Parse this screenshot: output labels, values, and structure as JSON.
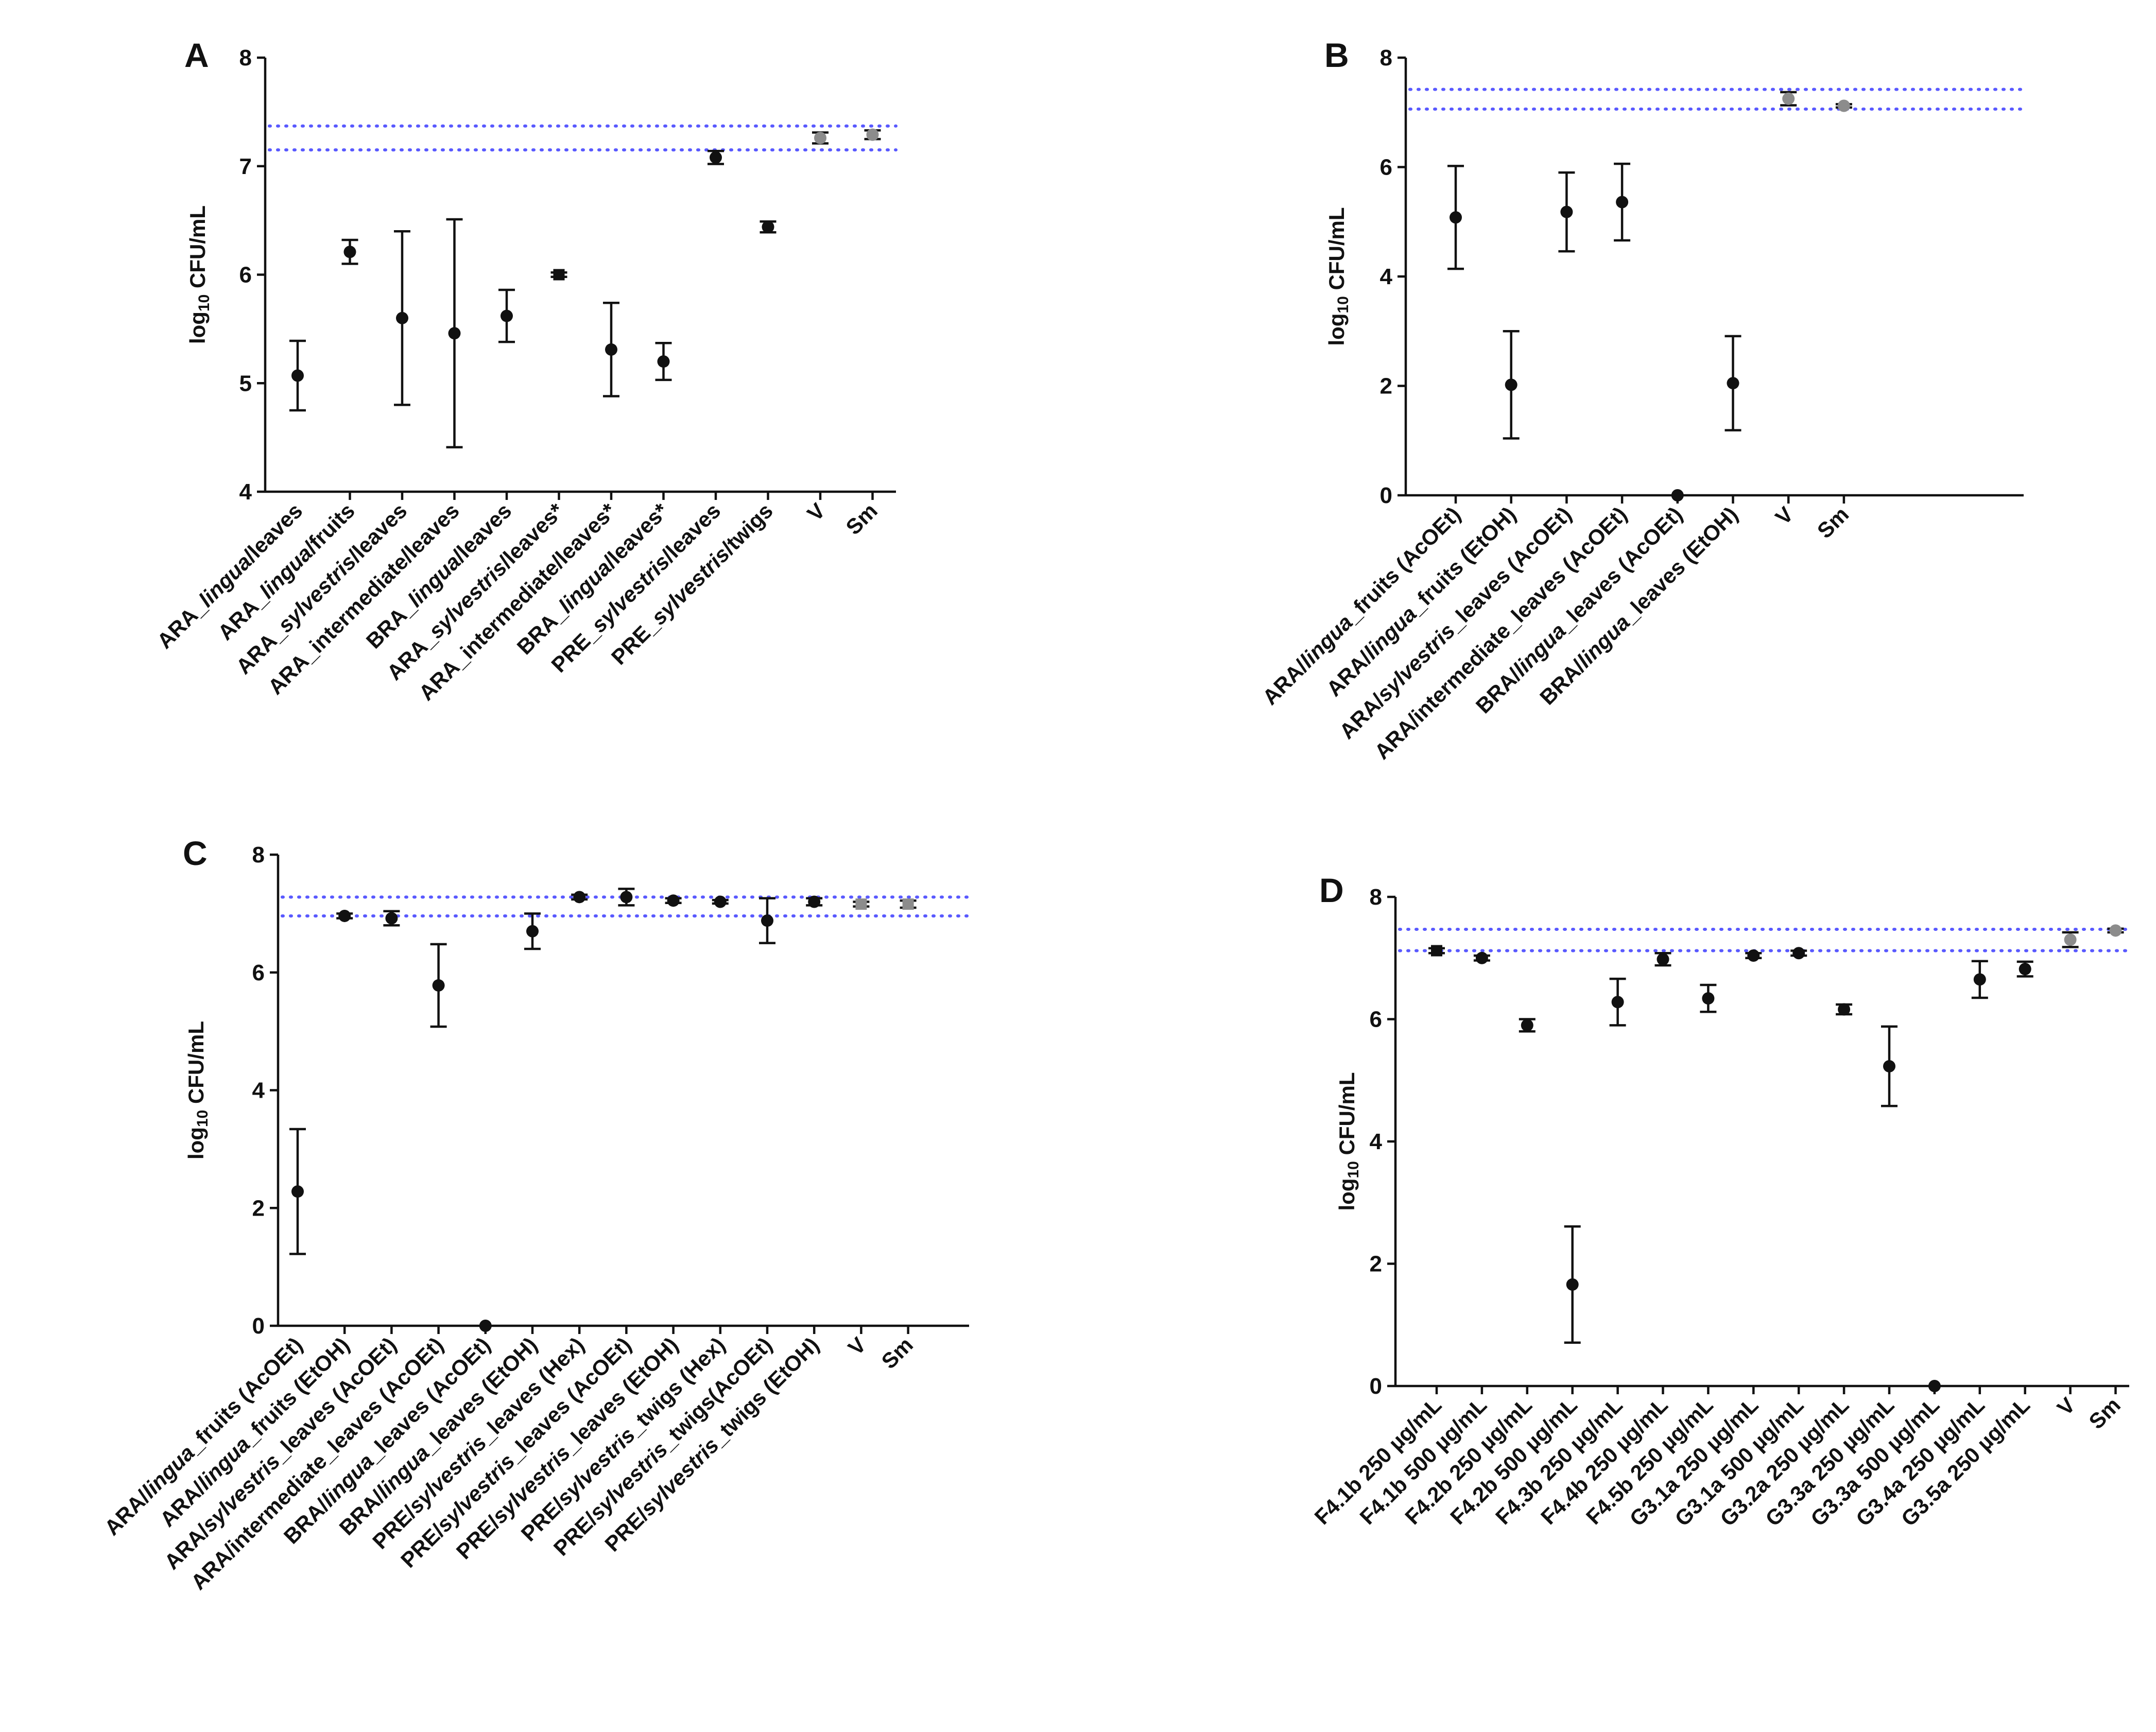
{
  "colors": {
    "point": "#111111",
    "control_point": "#8c8c8c",
    "reference_line": "#5959ff"
  },
  "chart_data": [
    {
      "type": "scatter",
      "panel": "A",
      "ylabel": "log10 CFU/mL",
      "ylim": [
        4,
        8
      ],
      "yticks": [
        4,
        5,
        6,
        7,
        8
      ],
      "reference_lines": [
        7.37,
        7.15
      ],
      "categories": [
        {
          "segs": [
            [
              "ARA_",
              false
            ],
            [
              "lingua",
              true
            ],
            [
              "/leaves",
              false
            ]
          ]
        },
        {
          "segs": [
            [
              "ARA_",
              false
            ],
            [
              "lingua",
              true
            ],
            [
              "/fruits",
              false
            ]
          ]
        },
        {
          "segs": [
            [
              "ARA_",
              false
            ],
            [
              "sylvestris",
              true
            ],
            [
              "/leaves",
              false
            ]
          ]
        },
        {
          "segs": [
            [
              "ARA_intermediate/leaves",
              false
            ]
          ]
        },
        {
          "segs": [
            [
              "BRA_",
              false
            ],
            [
              "lingua",
              true
            ],
            [
              "/leaves",
              false
            ]
          ]
        },
        {
          "segs": [
            [
              "ARA_",
              false
            ],
            [
              "sylvestris",
              true
            ],
            [
              "/leaves*",
              false
            ]
          ]
        },
        {
          "segs": [
            [
              "ARA_intermediate/leaves*",
              false
            ]
          ]
        },
        {
          "segs": [
            [
              "BRA_",
              false
            ],
            [
              "lingua",
              true
            ],
            [
              "/leaves*",
              false
            ]
          ]
        },
        {
          "segs": [
            [
              "PRE_",
              false
            ],
            [
              "sylvestris",
              true
            ],
            [
              "/leaves",
              false
            ]
          ]
        },
        {
          "segs": [
            [
              "PRE_",
              false
            ],
            [
              "sylvestris",
              true
            ],
            [
              "/twigs",
              false
            ]
          ]
        },
        {
          "segs": [
            [
              "V",
              false
            ]
          ]
        },
        {
          "segs": [
            [
              "Sm",
              false
            ]
          ]
        }
      ],
      "values": [
        5.07,
        6.21,
        5.6,
        5.46,
        5.62,
        6.0,
        5.31,
        5.2,
        7.08,
        6.44,
        7.26,
        7.29
      ],
      "errors": [
        0.32,
        0.11,
        0.8,
        1.05,
        0.24,
        0.02,
        0.43,
        0.17,
        0.06,
        0.05,
        0.05,
        0.04
      ],
      "control": [
        false,
        false,
        false,
        false,
        false,
        false,
        false,
        false,
        false,
        false,
        true,
        true
      ],
      "marker": [
        "circle",
        "circle",
        "circle",
        "circle",
        "circle",
        "square",
        "circle",
        "circle",
        "circle",
        "circle",
        "circle",
        "circle"
      ]
    },
    {
      "type": "scatter",
      "panel": "B",
      "ylabel": "log10 CFU/mL",
      "ylim": [
        0,
        8
      ],
      "yticks": [
        0,
        2,
        4,
        6,
        8
      ],
      "reference_lines": [
        7.42,
        7.06
      ],
      "categories": [
        {
          "segs": [
            [
              "ARA/",
              false
            ],
            [
              "lingua",
              true
            ],
            [
              "_fruits (AcOEt)",
              false
            ]
          ]
        },
        {
          "segs": [
            [
              "ARA/",
              false
            ],
            [
              "lingua",
              true
            ],
            [
              "_fruits (EtOH)",
              false
            ]
          ]
        },
        {
          "segs": [
            [
              "ARA/",
              false
            ],
            [
              "sylvestris",
              true
            ],
            [
              "_leaves (AcOEt)",
              false
            ]
          ]
        },
        {
          "segs": [
            [
              "ARA/intermediate_leaves (AcOEt)",
              false
            ]
          ]
        },
        {
          "segs": [
            [
              "BRA/",
              false
            ],
            [
              "lingua",
              true
            ],
            [
              "_leaves (AcOEt)",
              false
            ]
          ]
        },
        {
          "segs": [
            [
              "BRA/",
              false
            ],
            [
              "lingua",
              true
            ],
            [
              "_leaves (EtOH)",
              false
            ]
          ]
        },
        {
          "segs": [
            [
              "V",
              false
            ]
          ]
        },
        {
          "segs": [
            [
              "Sm",
              false
            ]
          ]
        }
      ],
      "values": [
        5.08,
        2.02,
        5.18,
        5.36,
        0.0,
        2.05,
        7.25,
        7.12
      ],
      "errors": [
        0.94,
        0.98,
        0.72,
        0.7,
        0.0,
        0.86,
        0.12,
        0.03
      ],
      "control": [
        false,
        false,
        false,
        false,
        false,
        false,
        true,
        true
      ],
      "marker": [
        "circle",
        "circle",
        "circle",
        "circle",
        "circle",
        "circle",
        "circle",
        "circle"
      ]
    },
    {
      "type": "scatter",
      "panel": "C",
      "ylabel": "log10 CFU/mL",
      "ylim": [
        0,
        8
      ],
      "yticks": [
        0,
        2,
        4,
        6,
        8
      ],
      "reference_lines": [
        7.28,
        6.96
      ],
      "categories": [
        {
          "segs": [
            [
              "ARA/",
              false
            ],
            [
              "lingua",
              true
            ],
            [
              "_fruits (AcOEt)",
              false
            ]
          ]
        },
        {
          "segs": [
            [
              "ARA/",
              false
            ],
            [
              "lingua",
              true
            ],
            [
              "_fruits (EtOH)",
              false
            ]
          ]
        },
        {
          "segs": [
            [
              "ARA/",
              false
            ],
            [
              "sylvestris",
              true
            ],
            [
              "_leaves (AcOEt)",
              false
            ]
          ]
        },
        {
          "segs": [
            [
              "ARA/intermediate_leaves (AcOEt)",
              false
            ]
          ]
        },
        {
          "segs": [
            [
              "BRA/",
              false
            ],
            [
              "lingua",
              true
            ],
            [
              "_leaves (AcOEt)",
              false
            ]
          ]
        },
        {
          "segs": [
            [
              "BRA/",
              false
            ],
            [
              "lingua",
              true
            ],
            [
              "_leaves (EtOH)",
              false
            ]
          ]
        },
        {
          "segs": [
            [
              "PRE/",
              false
            ],
            [
              "sylvestris",
              true
            ],
            [
              "_leaves (Hex)",
              false
            ]
          ]
        },
        {
          "segs": [
            [
              "PRE/",
              false
            ],
            [
              "sylvestris",
              true
            ],
            [
              "_leaves (AcOEt)",
              false
            ]
          ]
        },
        {
          "segs": [
            [
              "PRE/",
              false
            ],
            [
              "sylvestris",
              true
            ],
            [
              "_leaves (EtOH)",
              false
            ]
          ]
        },
        {
          "segs": [
            [
              "PRE/",
              false
            ],
            [
              "sylvestris",
              true
            ],
            [
              "_twigs (Hex)",
              false
            ]
          ]
        },
        {
          "segs": [
            [
              "PRE/",
              false
            ],
            [
              "sylvestris",
              true
            ],
            [
              "_twigs(AcOEt)",
              false
            ]
          ]
        },
        {
          "segs": [
            [
              "PRE/",
              false
            ],
            [
              "sylvestris",
              true
            ],
            [
              "_twigs (EtOH)",
              false
            ]
          ]
        },
        {
          "segs": [
            [
              "V",
              false
            ]
          ]
        },
        {
          "segs": [
            [
              "Sm",
              false
            ]
          ]
        }
      ],
      "values": [
        2.28,
        6.96,
        6.92,
        5.78,
        0.0,
        6.7,
        7.28,
        7.28,
        7.22,
        7.2,
        6.88,
        7.2,
        7.16,
        7.16
      ],
      "errors": [
        1.06,
        0.04,
        0.12,
        0.7,
        0.0,
        0.3,
        0.04,
        0.14,
        0.04,
        0.03,
        0.38,
        0.06,
        0.04,
        0.06
      ],
      "control": [
        false,
        false,
        false,
        false,
        false,
        false,
        false,
        false,
        false,
        false,
        false,
        false,
        true,
        true
      ],
      "marker": [
        "circle",
        "circle",
        "circle",
        "circle",
        "circle",
        "circle",
        "circle",
        "circle",
        "circle",
        "circle",
        "circle",
        "circle",
        "square",
        "square"
      ]
    },
    {
      "type": "scatter",
      "panel": "D",
      "ylabel": "log10 CFU/mL",
      "ylim": [
        0,
        8
      ],
      "yticks": [
        0,
        2,
        4,
        6,
        8
      ],
      "reference_lines": [
        7.47,
        7.12
      ],
      "categories": [
        {
          "segs": [
            [
              "F4.1b 250 µg/mL",
              false
            ]
          ]
        },
        {
          "segs": [
            [
              "F4.1b 500 µg/mL",
              false
            ]
          ]
        },
        {
          "segs": [
            [
              "F4.2b 250 µg/mL",
              false
            ]
          ]
        },
        {
          "segs": [
            [
              "F4.2b 500 µg/mL",
              false
            ]
          ]
        },
        {
          "segs": [
            [
              "F4.3b 250 µg/mL",
              false
            ]
          ]
        },
        {
          "segs": [
            [
              "F4.4b 250 µg/mL",
              false
            ]
          ]
        },
        {
          "segs": [
            [
              "F4.5b 250 µg/mL",
              false
            ]
          ]
        },
        {
          "segs": [
            [
              "G3.1a 250 µg/mL",
              false
            ]
          ]
        },
        {
          "segs": [
            [
              "G3.1a 500 µg/mL",
              false
            ]
          ]
        },
        {
          "segs": [
            [
              "G3.2a 250 µg/mL",
              false
            ]
          ]
        },
        {
          "segs": [
            [
              "G3.3a 250 µg/mL",
              false
            ]
          ]
        },
        {
          "segs": [
            [
              "G3.3a 500 µg/mL",
              false
            ]
          ]
        },
        {
          "segs": [
            [
              "G3.4a 250 µg/mL",
              false
            ]
          ]
        },
        {
          "segs": [
            [
              "G3.5a 250 µg/mL",
              false
            ]
          ]
        },
        {
          "segs": [
            [
              "V",
              false
            ]
          ]
        },
        {
          "segs": [
            [
              "Sm",
              false
            ]
          ]
        }
      ],
      "values": [
        7.12,
        7.0,
        5.9,
        1.66,
        6.28,
        6.98,
        6.34,
        7.04,
        7.08,
        6.16,
        5.23,
        0.0,
        6.65,
        6.82,
        7.3,
        7.45
      ],
      "errors": [
        0.04,
        0.04,
        0.1,
        0.95,
        0.38,
        0.1,
        0.22,
        0.04,
        0.04,
        0.08,
        0.65,
        0.0,
        0.3,
        0.12,
        0.12,
        0.03
      ],
      "control": [
        false,
        false,
        false,
        false,
        false,
        false,
        false,
        false,
        false,
        false,
        false,
        false,
        false,
        false,
        true,
        true
      ],
      "marker": [
        "square",
        "circle",
        "circle",
        "circle",
        "circle",
        "circle",
        "circle",
        "circle",
        "circle",
        "circle",
        "circle",
        "circle",
        "circle",
        "circle",
        "circle",
        "circle"
      ]
    }
  ]
}
